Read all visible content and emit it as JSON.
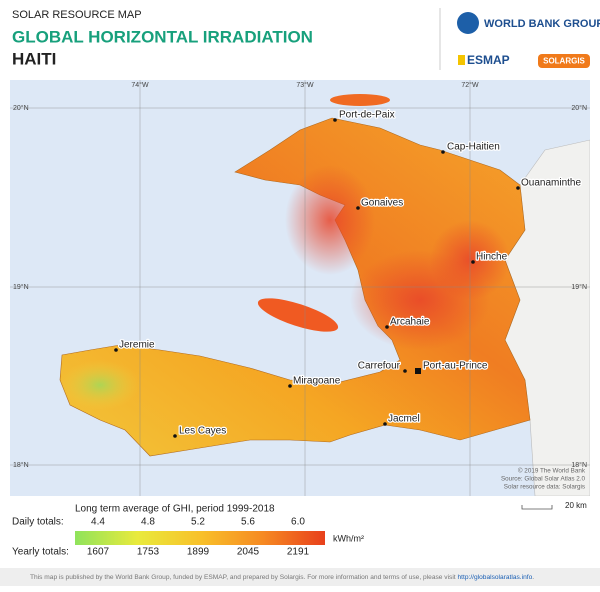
{
  "header": {
    "overline": "SOLAR RESOURCE MAP",
    "title": "GLOBAL HORIZONTAL IRRADIATION",
    "country": "HAITI"
  },
  "logos": {
    "world_bank": "WORLD BANK GROUP",
    "esmap": "ESMAP",
    "solargis": "SOLARGIS"
  },
  "map": {
    "longitudes": [
      "74°W",
      "73°W",
      "72°W"
    ],
    "latitudes": [
      "20°N",
      "19°N",
      "18°N"
    ],
    "places": [
      "Port-de-Paix",
      "Cap-Haitien",
      "Ouanaminthe",
      "Gonaives",
      "Hinche",
      "Arcahaie",
      "Jeremie",
      "Carrefour",
      "Port-au-Prince",
      "Miragoane",
      "Les Cayes",
      "Jacmel"
    ],
    "credits": [
      "© 2019 The World Bank",
      "Source: Global Solar Atlas 2.0",
      "Solar resource data: Solargis"
    ],
    "scale": "20 km"
  },
  "legend": {
    "title": "Long term average of GHI, period 1999-2018",
    "daily_label": "Daily totals:",
    "daily_ticks": [
      4.4,
      4.8,
      5.2,
      5.6,
      {
        "value": 6,
        "label": "6.0"
      }
    ],
    "unit": "kWh/m²",
    "yearly_label": "Yearly totals:",
    "yearly_ticks": [
      1607,
      1753,
      1899,
      2045,
      2191
    ]
  },
  "footer": {
    "text": "This map is published by the World Bank Group, funded by ESMAP, and prepared by Solargis. For more information and terms of use, please visit",
    "link": "http://globalsolaratlas.info",
    "end": "."
  }
}
